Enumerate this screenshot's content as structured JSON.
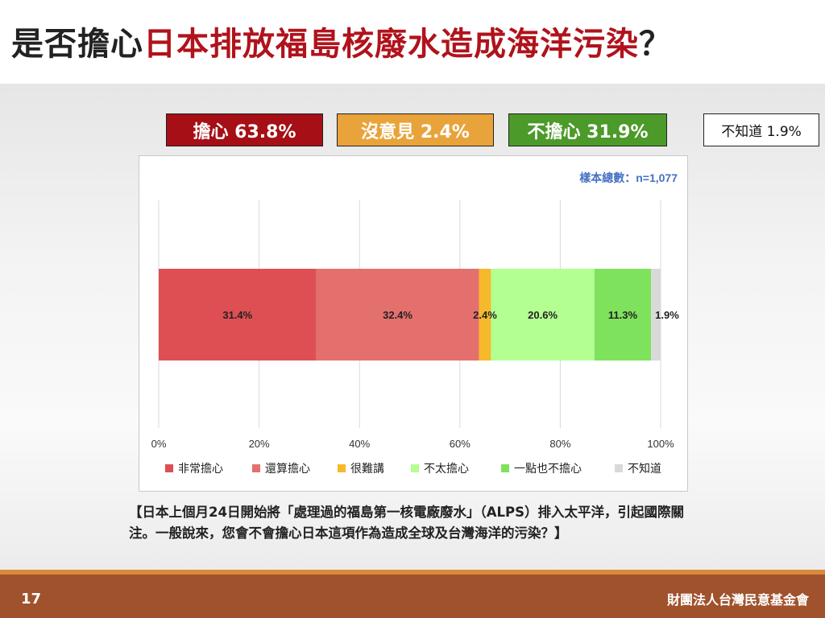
{
  "header": {
    "title_prefix": "是否擔心",
    "title_highlight": "日本排放福島核廢水造成海洋污染",
    "title_suffix": "？"
  },
  "summary": {
    "worry": {
      "label": "擔心 63.8%",
      "color": "#a50f15"
    },
    "neutral": {
      "label": "沒意見 2.4%",
      "color": "#e8a33a"
    },
    "not_worry": {
      "label": "不擔心 31.9%",
      "color": "#4c9a2a"
    },
    "unknown": {
      "label": "不知道 1.9%"
    }
  },
  "chart_data": {
    "type": "bar",
    "orientation": "horizontal",
    "stacked": true,
    "sample_note": "樣本總數：n=1,077",
    "x_ticks": [
      "0%",
      "20%",
      "40%",
      "60%",
      "80%",
      "100%"
    ],
    "xlim": [
      0,
      100
    ],
    "grid": true,
    "legend_position": "bottom",
    "series": [
      {
        "name": "非常擔心",
        "value": 31.4,
        "label": "31.4%",
        "color": "#de4f53"
      },
      {
        "name": "還算擔心",
        "value": 32.4,
        "label": "32.4%",
        "color": "#e4706e"
      },
      {
        "name": "很難講",
        "value": 2.4,
        "label": "2.4%",
        "color": "#f6b92b"
      },
      {
        "name": "不太擔心",
        "value": 20.6,
        "label": "20.6%",
        "color": "#b3ff91"
      },
      {
        "name": "一點也不擔心",
        "value": 11.3,
        "label": "11.3%",
        "color": "#7ee25c"
      },
      {
        "name": "不知道",
        "value": 1.9,
        "label": "1.9%",
        "color": "#d9d9d9"
      }
    ]
  },
  "question": "【日本上個月24日開始將「處理過的福島第一核電廠廢水」（ALPS）排入太平洋，引起國際關注。一般說來，您會不會擔心日本這項作為造成全球及台灣海洋的污染？】",
  "footer": {
    "page_number": "17",
    "organization": "財團法人台灣民意基金會"
  }
}
